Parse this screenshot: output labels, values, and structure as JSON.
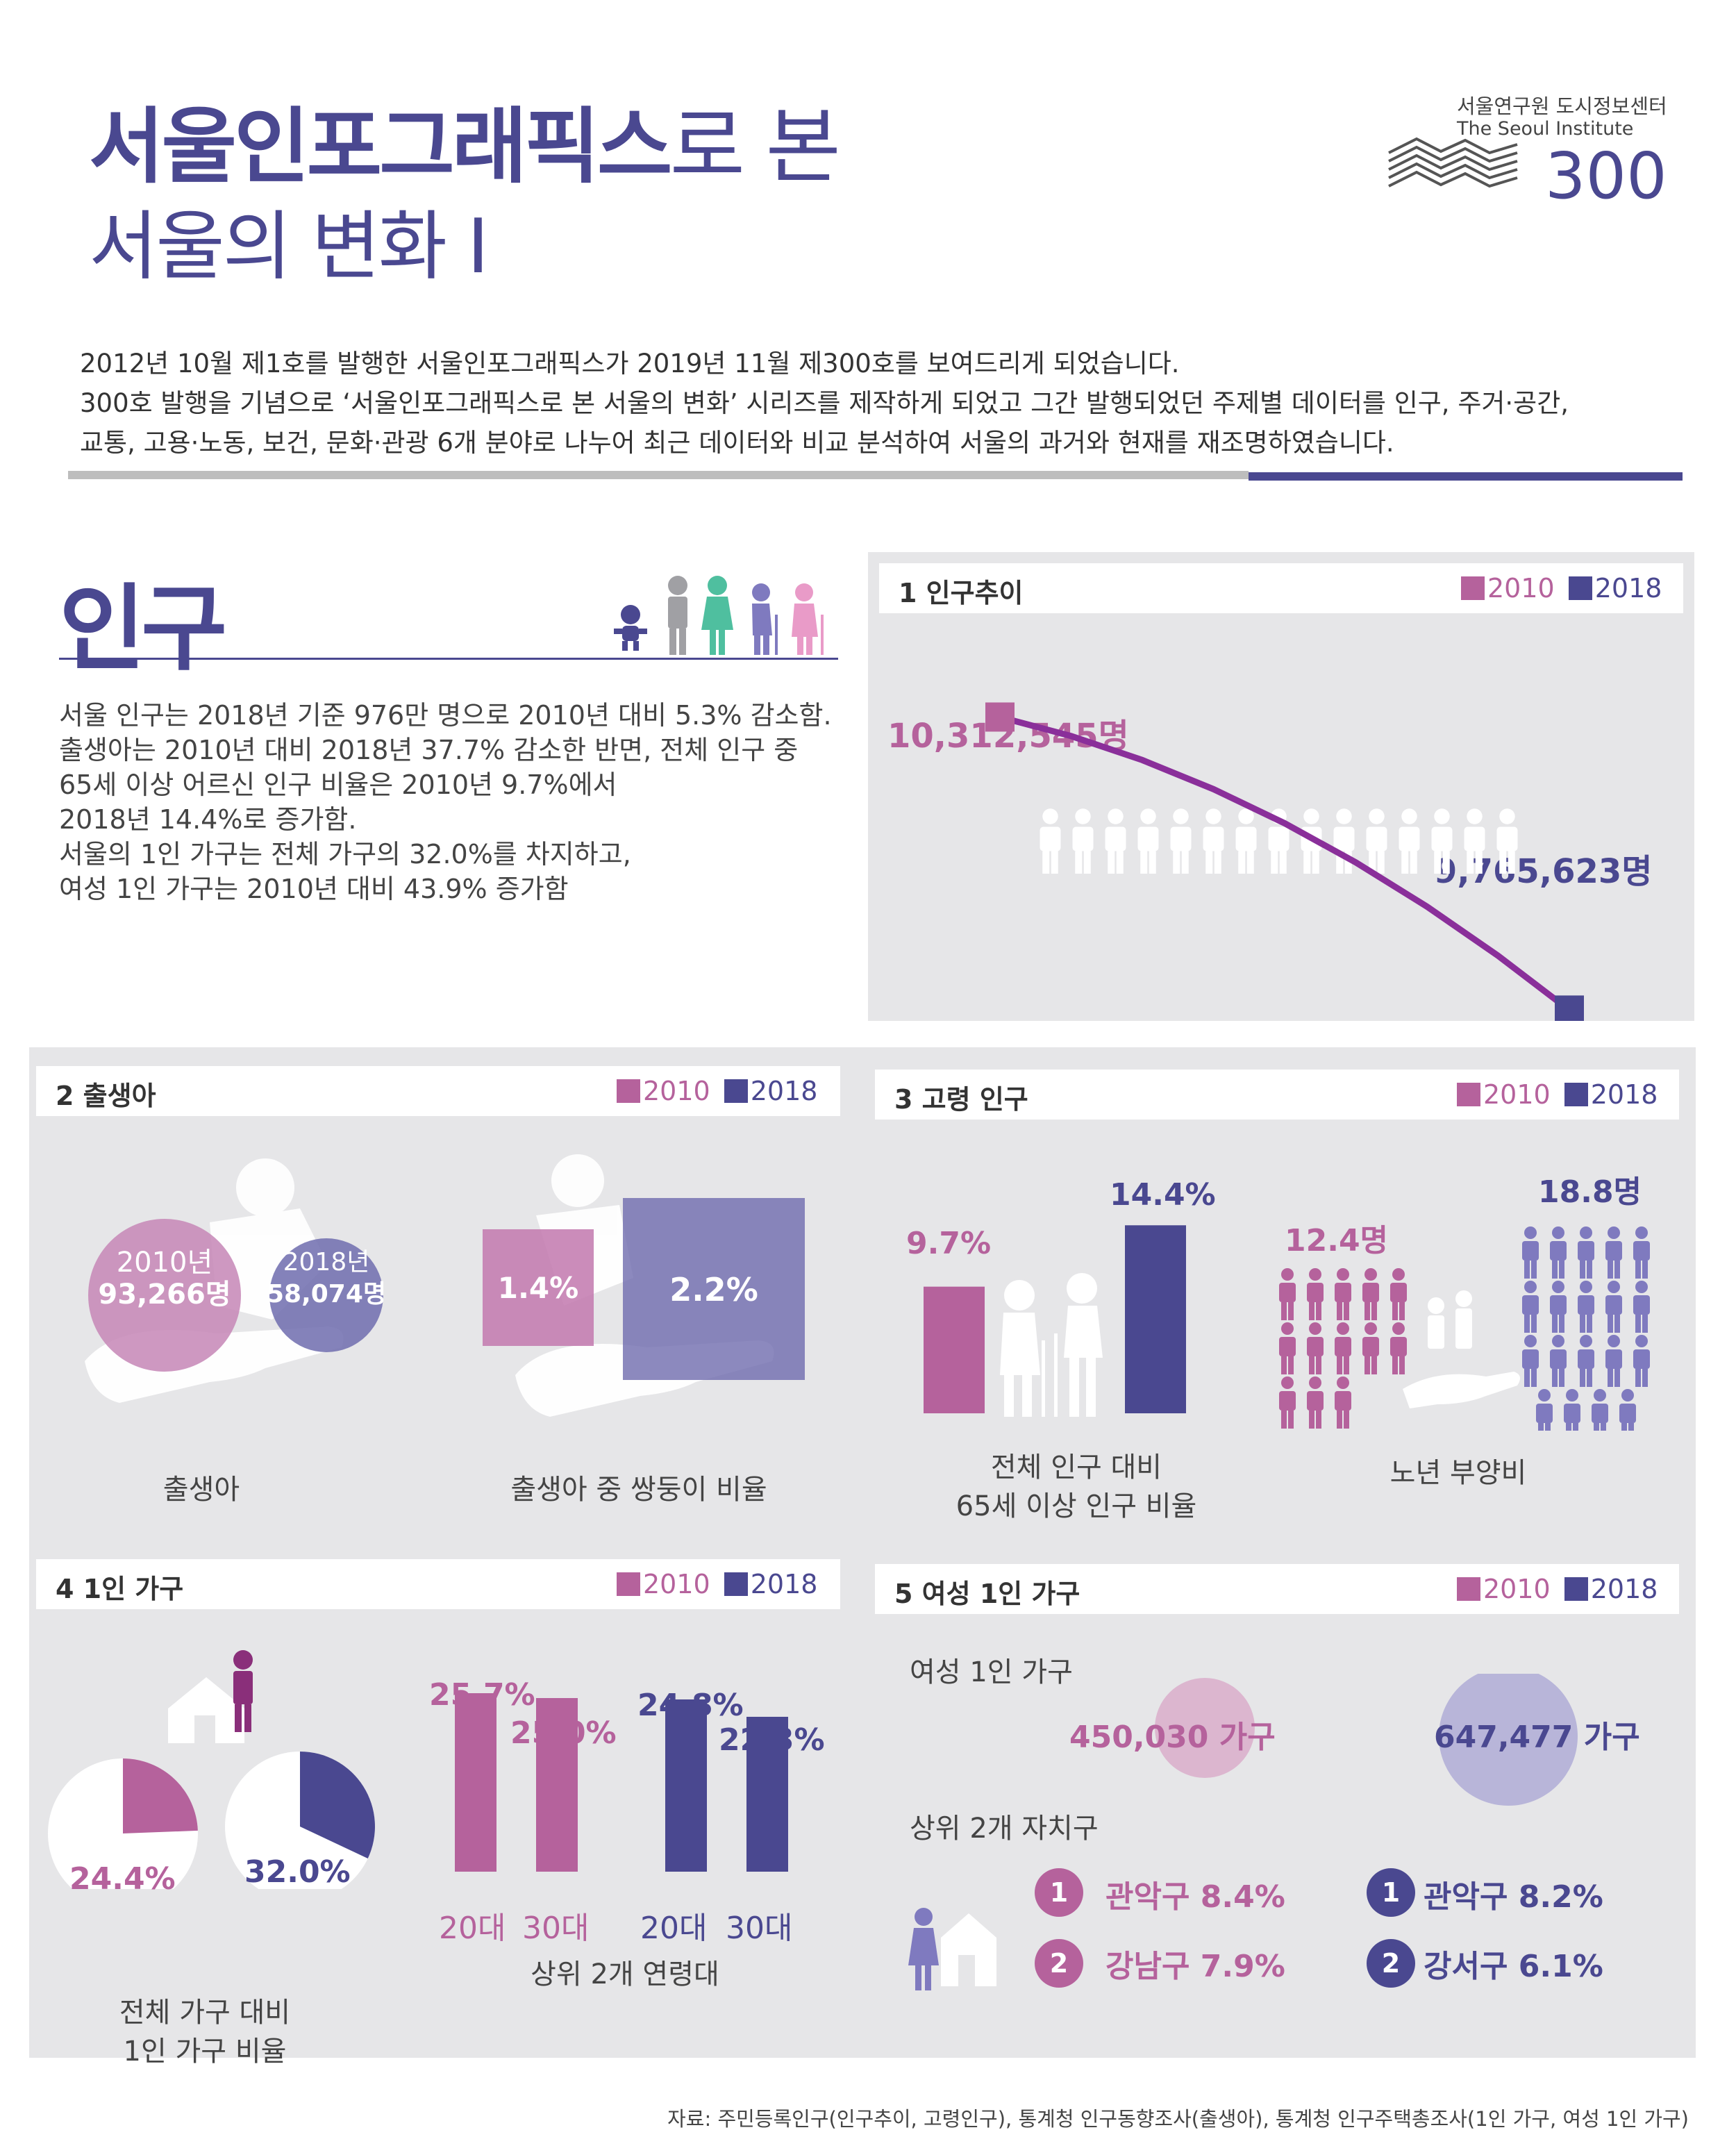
{
  "header": {
    "title_bold": "서울인포그래픽스",
    "title_rest": "로 본",
    "title_line2": "서울의 변화 I",
    "logo_kor": "서울연구원 도시정보센터",
    "logo_eng": "The Seoul Institute",
    "logo_number": "300"
  },
  "intro": {
    "line1": "2012년 10월 제1호를 발행한 서울인포그래픽스가 2019년 11월 제300호를 보여드리게 되었습니다.",
    "line2": "300호 발행을 기념으로 ‘서울인포그래픽스로 본 서울의 변화’ 시리즈를 제작하게 되었고 그간 발행되었던 주제별 데이터를 인구, 주거·공간,",
    "line3": "교통, 고용·노동, 보건, 문화·관광 6개 분야로 나누어 최근 데이터와 비교 분석하여 서울의 과거와 현재를 재조명하였습니다."
  },
  "section": {
    "title": "인구",
    "summary": [
      "서울 인구는 2018년 기준 976만 명으로 2010년 대비 5.3% 감소함.",
      "출생아는 2010년 대비 2018년 37.7% 감소한 반면, 전체 인구 중",
      "65세 이상 어르신 인구 비율은 2010년 9.7%에서",
      "2018년 14.4%로 증가함.",
      "서울의 1인 가구는 전체 가구의 32.0%를 차지하고,",
      "여성 1인 가구는 2010년 대비 43.9% 증가함"
    ]
  },
  "legend": {
    "y2010": "2010",
    "y2018": "2018"
  },
  "colors": {
    "c2010": "#b5629c",
    "c2018": "#4a4890",
    "panel": "#e6e6e8",
    "line": "#8a2f9a"
  },
  "panel1": {
    "title": "1  인구추이",
    "value_2010": "10,312,545명",
    "value_2018": "9,765,623명",
    "chart_data": {
      "type": "line",
      "x": [
        "2010",
        "2018"
      ],
      "series": [
        {
          "values": [
            10312545,
            9765623
          ]
        }
      ]
    }
  },
  "panel2": {
    "title": "2  출생아",
    "births_2010_year": "2010년",
    "births_2010_value": "93,266명",
    "births_2018_year": "2018년",
    "births_2018_value": "58,074명",
    "twins_2010": "1.4%",
    "twins_2018": "2.2%",
    "caption_births": "출생아",
    "caption_twins": "출생아 중 쌍둥이 비율"
  },
  "panel3": {
    "title": "3  고령 인구",
    "elderly_2010": "9.7%",
    "elderly_2018": "14.4%",
    "dep_2010": "12.4명",
    "dep_2018": "18.8명",
    "caption_elderly_1": "전체 인구 대비",
    "caption_elderly_2": "65세 이상 인구 비율",
    "caption_dep": "노년 부양비",
    "chart_data": {
      "type": "bar",
      "categories": [
        "2010",
        "2018"
      ],
      "values": [
        9.7,
        14.4
      ]
    }
  },
  "panel4": {
    "title": "4  1인 가구",
    "ratio_2010": "24.4%",
    "ratio_2018": "32.0%",
    "age_2010_20s": "25.7%",
    "age_2010_30s": "25.0%",
    "age_2018_20s": "24.8%",
    "age_2018_30s": "22.3%",
    "label_20s": "20대",
    "label_30s": "30대",
    "caption_ratio_1": "전체 가구 대비",
    "caption_ratio_2": "1인 가구 비율",
    "caption_age": "상위 2개 연령대",
    "chart_data": [
      {
        "type": "pie",
        "categories": [
          "2010"
        ],
        "values": [
          24.4
        ]
      },
      {
        "type": "pie",
        "categories": [
          "2018"
        ],
        "values": [
          32.0
        ]
      },
      {
        "type": "bar",
        "categories": [
          "20대",
          "30대"
        ],
        "series": [
          {
            "name": "2010",
            "values": [
              25.7,
              25.0
            ]
          },
          {
            "name": "2018",
            "values": [
              24.8,
              22.3
            ]
          }
        ]
      }
    ]
  },
  "panel5": {
    "title": "5  여성 1인 가구",
    "subtitle": "여성 1인 가구",
    "value_2010": "450,030 가구",
    "value_2018": "647,477 가구",
    "top_title": "상위 2개 자치구",
    "rank1": "1",
    "rank2": "2",
    "d2010_1": "관악구 8.4%",
    "d2010_2": "강남구 7.9%",
    "d2018_1": "관악구 8.2%",
    "d2018_2": "강서구 6.1%"
  },
  "footer": {
    "source": "자료: 주민등록인구(인구추이, 고령인구), 통계청 인구동향조사(출생아), 통계청 인구주택총조사(1인 가구, 여성 1인 가구)"
  }
}
